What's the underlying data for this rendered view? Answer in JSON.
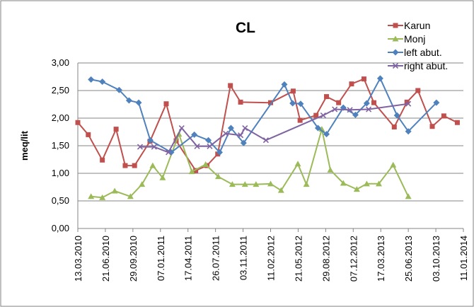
{
  "chart_data": {
    "type": "line",
    "title": "CL",
    "xlabel": "",
    "ylabel": "meq/lit",
    "ylim": [
      0,
      3
    ],
    "y_ticks": [
      "0,00",
      "0,50",
      "1,00",
      "1,50",
      "2,00",
      "2,50",
      "3,00"
    ],
    "x_tick_labels": [
      "13.03.2010",
      "21.06.2010",
      "29.09.2010",
      "07.01.2011",
      "17.04.2011",
      "26.07.2011",
      "03.11.2011",
      "11.02.2012",
      "21.05.2012",
      "29.08.2012",
      "07.12.2012",
      "17.03.2013",
      "25.06.2013",
      "03.10.2013",
      "11.01.2014"
    ],
    "xlim": [
      "2010-03-13",
      "2014-01-11"
    ],
    "grid": true,
    "legend_position": "top-right",
    "series": [
      {
        "name": "Karun",
        "color": "#c0504d",
        "marker": "square",
        "points": [
          [
            "2010-03-13",
            1.92
          ],
          [
            "2010-04-20",
            1.7
          ],
          [
            "2010-06-10",
            1.24
          ],
          [
            "2010-07-30",
            1.8
          ],
          [
            "2010-09-01",
            1.14
          ],
          [
            "2010-10-05",
            1.14
          ],
          [
            "2010-11-30",
            1.58
          ],
          [
            "2011-01-28",
            2.26
          ],
          [
            "2011-03-05",
            1.59
          ],
          [
            "2011-05-15",
            1.05
          ],
          [
            "2011-06-25",
            1.14
          ],
          [
            "2011-08-03",
            1.35
          ],
          [
            "2011-09-18",
            2.59
          ],
          [
            "2011-10-25",
            2.29
          ],
          [
            "2012-02-11",
            2.28
          ],
          [
            "2012-05-03",
            2.49
          ],
          [
            "2012-05-28",
            1.96
          ],
          [
            "2012-07-25",
            2.05
          ],
          [
            "2012-09-01",
            2.39
          ],
          [
            "2012-10-15",
            2.28
          ],
          [
            "2012-12-01",
            2.62
          ],
          [
            "2013-01-15",
            2.71
          ],
          [
            "2013-02-20",
            2.28
          ],
          [
            "2013-05-05",
            1.84
          ],
          [
            "2013-06-20",
            2.29
          ],
          [
            "2013-07-30",
            2.5
          ],
          [
            "2013-09-20",
            1.85
          ],
          [
            "2013-11-01",
            2.04
          ],
          [
            "2013-12-20",
            1.92
          ]
        ]
      },
      {
        "name": "Monj",
        "color": "#9bbb59",
        "marker": "triangle",
        "points": [
          [
            "2010-04-30",
            0.58
          ],
          [
            "2010-06-10",
            0.56
          ],
          [
            "2010-07-25",
            0.68
          ],
          [
            "2010-09-20",
            0.58
          ],
          [
            "2010-11-01",
            0.8
          ],
          [
            "2010-12-10",
            1.14
          ],
          [
            "2011-01-15",
            0.92
          ],
          [
            "2011-03-15",
            1.71
          ],
          [
            "2011-05-01",
            1.03
          ],
          [
            "2011-06-20",
            1.16
          ],
          [
            "2011-08-05",
            0.94
          ],
          [
            "2011-09-25",
            0.8
          ],
          [
            "2011-11-10",
            0.8
          ],
          [
            "2011-12-20",
            0.8
          ],
          [
            "2012-02-11",
            0.81
          ],
          [
            "2012-03-20",
            0.69
          ],
          [
            "2012-05-20",
            1.17
          ],
          [
            "2012-06-20",
            0.8
          ],
          [
            "2012-08-15",
            1.8
          ],
          [
            "2012-09-15",
            1.06
          ],
          [
            "2012-11-01",
            0.82
          ],
          [
            "2012-12-20",
            0.71
          ],
          [
            "2013-01-25",
            0.81
          ],
          [
            "2013-03-10",
            0.81
          ],
          [
            "2013-05-01",
            1.15
          ],
          [
            "2013-06-25",
            0.58
          ]
        ]
      },
      {
        "name": "left abut.",
        "color": "#4f81bd",
        "marker": "diamond",
        "points": [
          [
            "2010-04-30",
            2.7
          ],
          [
            "2010-06-10",
            2.66
          ],
          [
            "2010-08-10",
            2.51
          ],
          [
            "2010-09-15",
            2.32
          ],
          [
            "2010-10-20",
            2.28
          ],
          [
            "2010-12-01",
            1.6
          ],
          [
            "2011-02-15",
            1.38
          ],
          [
            "2011-05-10",
            1.7
          ],
          [
            "2011-06-30",
            1.6
          ],
          [
            "2011-08-10",
            1.38
          ],
          [
            "2011-09-20",
            1.82
          ],
          [
            "2011-11-05",
            1.55
          ],
          [
            "2012-04-01",
            2.61
          ],
          [
            "2012-05-01",
            2.27
          ],
          [
            "2012-05-30",
            2.26
          ],
          [
            "2012-08-01",
            1.82
          ],
          [
            "2012-09-01",
            1.71
          ],
          [
            "2012-11-01",
            2.19
          ],
          [
            "2012-12-15",
            2.06
          ],
          [
            "2013-01-25",
            2.27
          ],
          [
            "2013-03-15",
            2.72
          ],
          [
            "2013-05-15",
            2.05
          ],
          [
            "2013-06-25",
            1.76
          ],
          [
            "2013-10-05",
            2.28
          ]
        ]
      },
      {
        "name": "right abut.",
        "color": "#8064a2",
        "marker": "x",
        "points": [
          [
            "2010-10-25",
            1.48
          ],
          [
            "2010-12-15",
            1.48
          ],
          [
            "2011-02-05",
            1.38
          ],
          [
            "2011-03-25",
            1.82
          ],
          [
            "2011-05-20",
            1.49
          ],
          [
            "2011-07-05",
            1.49
          ],
          [
            "2011-09-01",
            1.72
          ],
          [
            "2011-10-25",
            1.69
          ],
          [
            "2011-11-10",
            1.82
          ],
          [
            "2012-01-25",
            1.6
          ],
          [
            "2012-08-20",
            2.05
          ],
          [
            "2012-10-01",
            2.16
          ],
          [
            "2012-11-25",
            2.15
          ],
          [
            "2013-02-01",
            2.16
          ],
          [
            "2013-06-25",
            2.26
          ]
        ]
      }
    ]
  }
}
